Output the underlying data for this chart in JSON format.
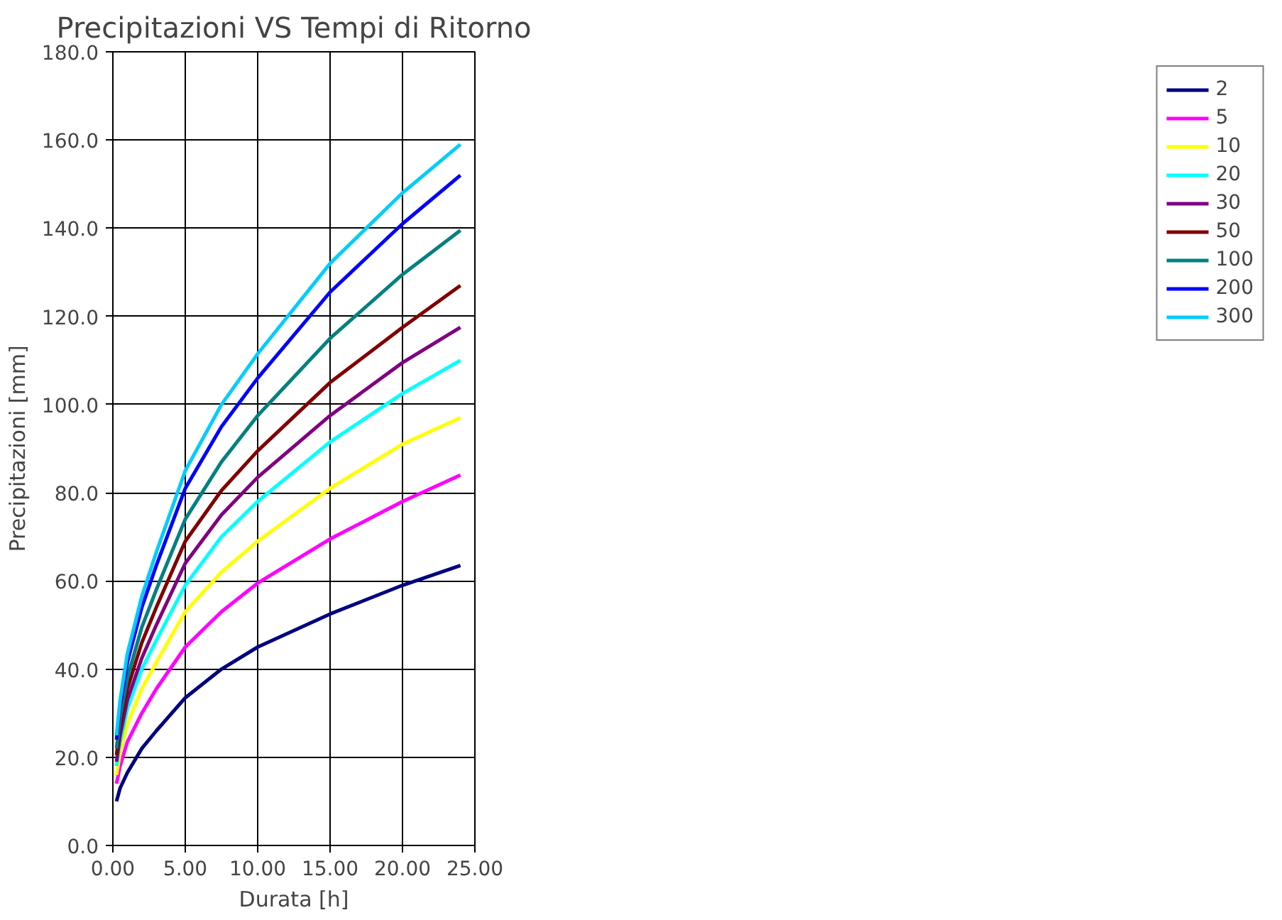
{
  "chart_data": {
    "type": "line",
    "title": "Precipitazioni VS Tempi di Ritorno",
    "xlabel": "Durata [h]",
    "ylabel": "Precipitazioni [mm]",
    "x": [
      0.25,
      0.5,
      1,
      2,
      3,
      5,
      7.5,
      10,
      15,
      20,
      24
    ],
    "series": [
      {
        "name": "2",
        "color": "#000080",
        "values": [
          10,
          13,
          16.5,
          22,
          26,
          33.5,
          40,
          45,
          52.5,
          59,
          63.5
        ]
      },
      {
        "name": "5",
        "color": "#ff00ff",
        "values": [
          14,
          18,
          23.5,
          30,
          35.5,
          45,
          53,
          59.5,
          69.5,
          78,
          84
        ]
      },
      {
        "name": "10",
        "color": "#ffff00",
        "values": [
          16,
          21,
          27.5,
          35.5,
          41.5,
          53,
          62,
          69,
          81,
          91,
          97
        ]
      },
      {
        "name": "20",
        "color": "#00ffff",
        "values": [
          18,
          23.5,
          31,
          40,
          46.5,
          59,
          70,
          78,
          91.5,
          102.5,
          110
        ]
      },
      {
        "name": "30",
        "color": "#800080",
        "values": [
          19,
          25,
          33,
          42.5,
          50,
          64,
          75,
          83.5,
          97.5,
          109.5,
          117.5
        ]
      },
      {
        "name": "50",
        "color": "#800000",
        "values": [
          20.5,
          27,
          35.5,
          46,
          54,
          69,
          80.5,
          89.5,
          105,
          117.5,
          127
        ]
      },
      {
        "name": "100",
        "color": "#008080",
        "values": [
          22,
          29,
          38,
          49.5,
          58,
          74,
          87,
          97.5,
          115,
          129.5,
          139.5
        ]
      },
      {
        "name": "200",
        "color": "#0000ff",
        "values": [
          24,
          31.5,
          41.5,
          54,
          63.5,
          81,
          95,
          106,
          125.5,
          141,
          152
        ]
      },
      {
        "name": "300",
        "color": "#00ccff",
        "values": [
          25,
          33,
          43.5,
          56.5,
          66.5,
          85,
          100,
          111.5,
          132,
          148,
          159
        ]
      }
    ],
    "xlim": [
      0,
      25
    ],
    "ylim": [
      0,
      180
    ],
    "xticks": [
      {
        "value": 0,
        "label": "0.00"
      },
      {
        "value": 5,
        "label": "5.00"
      },
      {
        "value": 10,
        "label": "10.00"
      },
      {
        "value": 15,
        "label": "15.00"
      },
      {
        "value": 20,
        "label": "20.00"
      },
      {
        "value": 25,
        "label": "25.00"
      }
    ],
    "yticks": [
      {
        "value": 0,
        "label": "0.0"
      },
      {
        "value": 20,
        "label": "20.0"
      },
      {
        "value": 40,
        "label": "40.0"
      },
      {
        "value": 60,
        "label": "60.0"
      },
      {
        "value": 80,
        "label": "80.0"
      },
      {
        "value": 100,
        "label": "100.0"
      },
      {
        "value": 120,
        "label": "120.0"
      },
      {
        "value": 140,
        "label": "140.0"
      },
      {
        "value": 160,
        "label": "160.0"
      },
      {
        "value": 180,
        "label": "180.0"
      }
    ],
    "grid": true,
    "legend": "right",
    "marker": "none",
    "line_style": "solid"
  }
}
